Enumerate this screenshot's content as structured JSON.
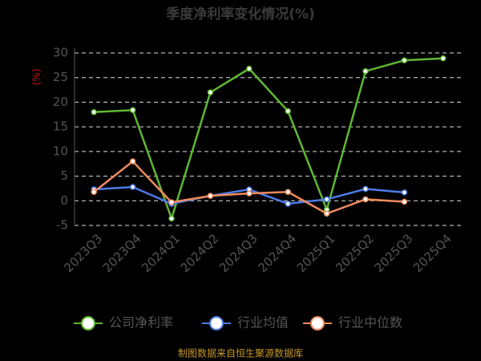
{
  "chart_data": {
    "type": "line",
    "title": "季度净利率变化情况(%)",
    "y_label": "(%)",
    "categories": [
      "2023Q3",
      "2023Q4",
      "2024Q1",
      "2024Q2",
      "2024Q3",
      "2024Q4",
      "2025Q1",
      "2025Q2",
      "2025Q3",
      "2025Q4"
    ],
    "series": [
      {
        "name": "公司净利率",
        "color": "#5fb832",
        "values": [
          18.0,
          18.4,
          -3.6,
          22.0,
          26.8,
          18.2,
          -1.8,
          26.3,
          28.5,
          28.9
        ]
      },
      {
        "name": "行业均值",
        "color": "#4c7be8",
        "values": [
          2.3,
          2.8,
          -0.6,
          1.0,
          2.3,
          -0.6,
          0.3,
          2.4,
          1.7,
          null
        ]
      },
      {
        "name": "行业中位数",
        "color": "#f08a5d",
        "values": [
          1.8,
          8.0,
          -0.3,
          1.0,
          1.5,
          1.8,
          -2.6,
          0.3,
          -0.2,
          null
        ]
      }
    ],
    "ylim": [
      -5,
      30
    ],
    "yticks": [
      -5,
      0,
      5,
      10,
      15,
      20,
      25,
      30
    ],
    "grid": true,
    "legend": "bottom",
    "source": "制图数据来自恒生聚源数据库"
  }
}
